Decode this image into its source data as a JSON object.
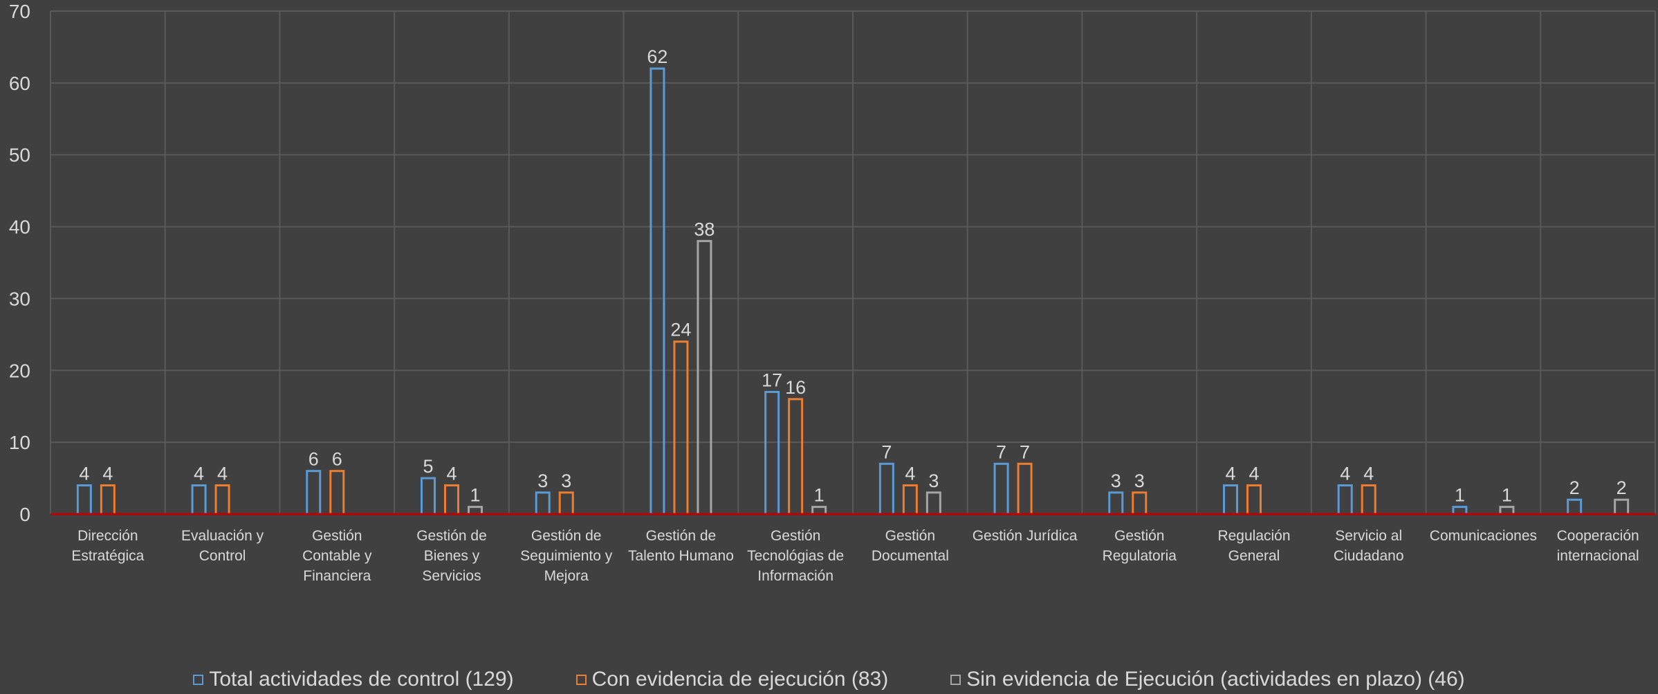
{
  "chart_data": {
    "type": "bar",
    "categories": [
      [
        "Dirección",
        "Estratégica"
      ],
      [
        "Evaluación y",
        "Control"
      ],
      [
        "Gestión",
        "Contable y",
        "Financiera"
      ],
      [
        "Gestión de",
        "Bienes y",
        "Servicios"
      ],
      [
        "Gestión de",
        "Seguimiento y",
        "Mejora"
      ],
      [
        "Gestión de",
        "Talento Humano"
      ],
      [
        "Gestión",
        "Tecnológias de",
        "Información"
      ],
      [
        "Gestión",
        "Documental"
      ],
      [
        "Gestión Jurídica"
      ],
      [
        "Gestión",
        "Regulatoria"
      ],
      [
        "Regulación",
        "General"
      ],
      [
        "Servicio al",
        "Ciudadano"
      ],
      [
        "Comunicaciones"
      ],
      [
        "Cooperación",
        "internacional"
      ]
    ],
    "series": [
      {
        "name": "Total actividades de control (129)",
        "color": "#5b9bd5",
        "values": [
          4,
          4,
          6,
          5,
          3,
          62,
          17,
          7,
          7,
          3,
          4,
          4,
          1,
          2
        ]
      },
      {
        "name": "Con evidencia de ejecución (83)",
        "color": "#ed7d31",
        "values": [
          4,
          4,
          6,
          4,
          3,
          24,
          16,
          4,
          7,
          3,
          4,
          4,
          null,
          null
        ]
      },
      {
        "name": "Sin evidencia de Ejecución (actividades en plazo) (46)",
        "color": "#a5a5a5",
        "values": [
          null,
          null,
          null,
          1,
          null,
          38,
          1,
          3,
          null,
          null,
          null,
          null,
          1,
          2
        ]
      }
    ],
    "ylim": [
      0,
      70
    ],
    "yticks": [
      0,
      10,
      20,
      30,
      40,
      50,
      60,
      70
    ],
    "grid": true,
    "legend_position": "bottom",
    "axis_line_color": "#c00000"
  }
}
